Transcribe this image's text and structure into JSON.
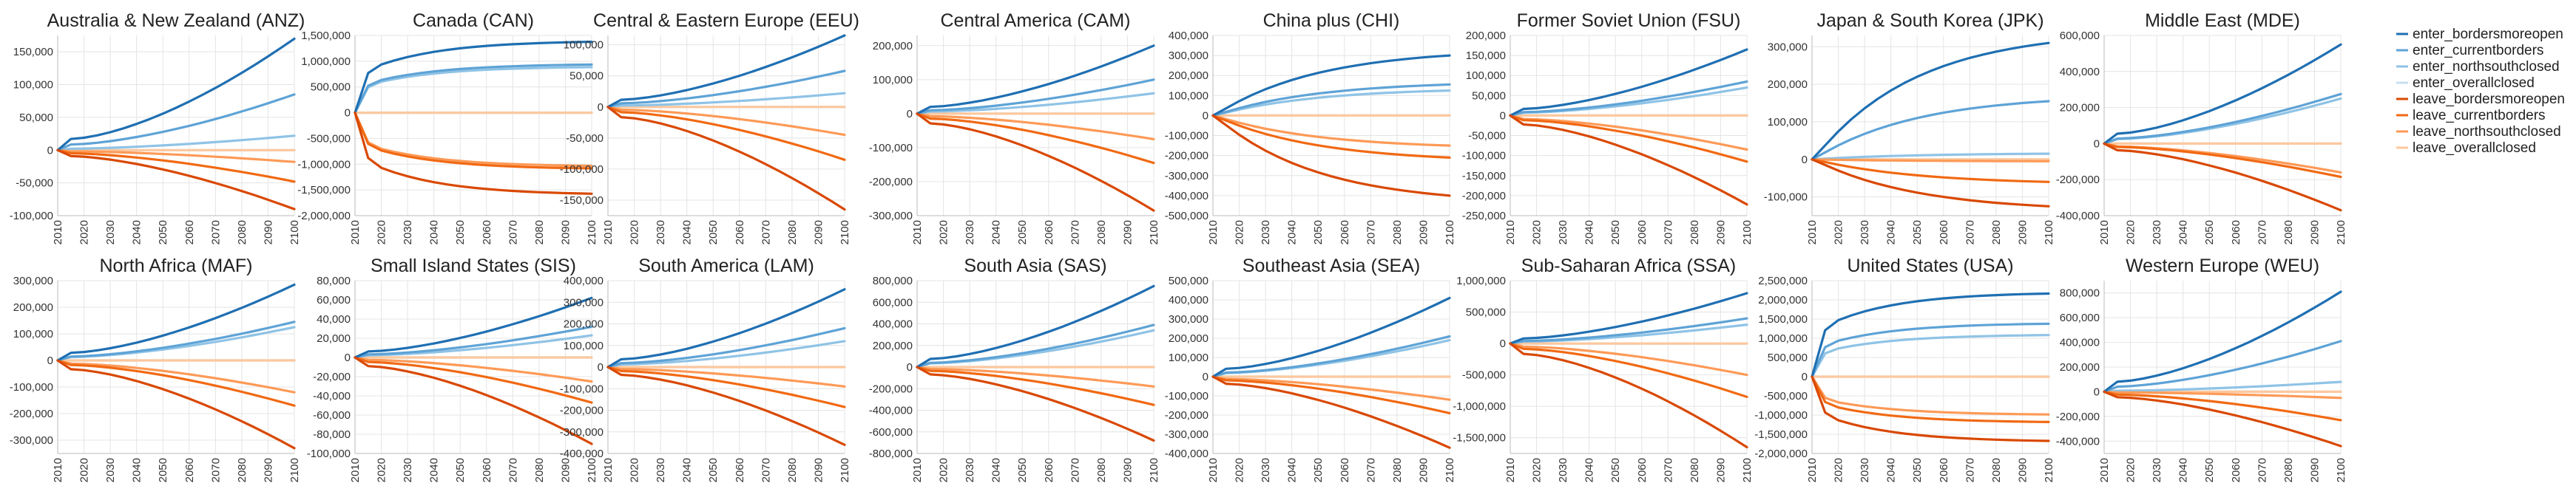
{
  "chart_data": {
    "type": "line",
    "x": [
      2010,
      2020,
      2030,
      2040,
      2050,
      2060,
      2070,
      2080,
      2090,
      2100
    ],
    "xlim": [
      2010,
      2100
    ],
    "legend_position": "right",
    "legend": [
      {
        "key": "enter_bordersmoreopen",
        "label": "enter_bordersmoreopen",
        "color": "#1f6fb2"
      },
      {
        "key": "enter_currentborders",
        "label": "enter_currentborders",
        "color": "#5ea3d6"
      },
      {
        "key": "enter_northsouthclosed",
        "label": "enter_northsouthclosed",
        "color": "#8fc3e6"
      },
      {
        "key": "enter_overallclosed",
        "label": "enter_overallclosed",
        "color": "#c7dff0"
      },
      {
        "key": "leave_bordersmoreopen",
        "label": "leave_bordersmoreopen",
        "color": "#d94801"
      },
      {
        "key": "leave_currentborders",
        "label": "leave_currentborders",
        "color": "#f16913"
      },
      {
        "key": "leave_northsouthclosed",
        "label": "leave_northsouthclosed",
        "color": "#fd9a57"
      },
      {
        "key": "leave_overallclosed",
        "label": "leave_overallclosed",
        "color": "#fdc89e"
      }
    ],
    "panels": [
      {
        "title": "Australia & New Zealand (ANZ)",
        "ylim": [
          -100000,
          175000
        ],
        "yticks": [
          -100000,
          -50000,
          0,
          50000,
          100000,
          150000
        ],
        "ytick_labels": [
          "-100,000",
          "-50,000",
          "0",
          "50,000",
          "100,000",
          "150,000"
        ],
        "series": {
          "enter_bordersmoreopen": 170000,
          "enter_currentborders": 85000,
          "enter_northsouthclosed": 22000,
          "enter_overallclosed": 0,
          "leave_bordersmoreopen": -90000,
          "leave_currentborders": -48000,
          "leave_northsouthclosed": -18000,
          "leave_overallclosed": 0
        }
      },
      {
        "title": "Canada (CAN)",
        "ylim": [
          -2000000,
          1500000
        ],
        "yticks": [
          -2000000,
          -1500000,
          -1000000,
          -500000,
          0,
          500000,
          1000000,
          1500000
        ],
        "ytick_labels": [
          "-2,000,000",
          "-1,500,000",
          "-1,000,000",
          "-500,000",
          "0",
          "500,000",
          "1,000,000",
          "1,500,000"
        ],
        "series": {
          "enter_bordersmoreopen": 1400000,
          "enter_currentborders": 950000,
          "enter_northsouthclosed": 900000,
          "enter_overallclosed": 0,
          "leave_bordersmoreopen": -1600000,
          "leave_currentborders": -1100000,
          "leave_northsouthclosed": -1050000,
          "leave_overallclosed": 0
        }
      },
      {
        "title": "Central & Eastern Europe (EEU)",
        "ylim": [
          -175000,
          115000
        ],
        "yticks": [
          -150000,
          -100000,
          -50000,
          0,
          50000,
          100000
        ],
        "ytick_labels": [
          "-150,000",
          "-100,000",
          "-50,000",
          "0",
          "50,000",
          "100,000"
        ],
        "series": {
          "enter_bordersmoreopen": 115000,
          "enter_currentborders": 58000,
          "enter_northsouthclosed": 22000,
          "enter_overallclosed": 0,
          "leave_bordersmoreopen": -165000,
          "leave_currentborders": -85000,
          "leave_northsouthclosed": -45000,
          "leave_overallclosed": 0
        }
      },
      {
        "title": "Central America (CAM)",
        "ylim": [
          -300000,
          230000
        ],
        "yticks": [
          -300000,
          -200000,
          -100000,
          0,
          100000,
          200000
        ],
        "ytick_labels": [
          "-300,000",
          "-200,000",
          "-100,000",
          "0",
          "100,000",
          "200,000"
        ],
        "series": {
          "enter_bordersmoreopen": 200000,
          "enter_currentborders": 100000,
          "enter_northsouthclosed": 60000,
          "enter_overallclosed": 0,
          "leave_bordersmoreopen": -285000,
          "leave_currentborders": -145000,
          "leave_northsouthclosed": -75000,
          "leave_overallclosed": 0
        }
      },
      {
        "title": "China plus (CHI)",
        "ylim": [
          -500000,
          400000
        ],
        "yticks": [
          -500000,
          -400000,
          -300000,
          -200000,
          -100000,
          0,
          100000,
          200000,
          300000,
          400000
        ],
        "ytick_labels": [
          "-500,000",
          "-400,000",
          "-300,000",
          "-200,000",
          "-100,000",
          "0",
          "100,000",
          "200,000",
          "300,000",
          "400,000"
        ],
        "series": {
          "enter_bordersmoreopen": 300000,
          "enter_currentborders": 155000,
          "enter_northsouthclosed": 125000,
          "enter_overallclosed": 0,
          "leave_bordersmoreopen": -400000,
          "leave_currentborders": -210000,
          "leave_northsouthclosed": -150000,
          "leave_overallclosed": 0
        }
      },
      {
        "title": "Former Soviet Union (FSU)",
        "ylim": [
          -250000,
          200000
        ],
        "yticks": [
          -250000,
          -200000,
          -150000,
          -100000,
          -50000,
          0,
          50000,
          100000,
          150000,
          200000
        ],
        "ytick_labels": [
          "-250,000",
          "-200,000",
          "-150,000",
          "-100,000",
          "-50,000",
          "0",
          "50,000",
          "100,000",
          "150,000",
          "200,000"
        ],
        "series": {
          "enter_bordersmoreopen": 165000,
          "enter_currentborders": 85000,
          "enter_northsouthclosed": 70000,
          "enter_overallclosed": 0,
          "leave_bordersmoreopen": -222000,
          "leave_currentborders": -115000,
          "leave_northsouthclosed": -85000,
          "leave_overallclosed": 0
        }
      },
      {
        "title": "Japan & South Korea (JPK)",
        "ylim": [
          -150000,
          330000
        ],
        "yticks": [
          -100000,
          0,
          100000,
          200000,
          300000
        ],
        "ytick_labels": [
          "-100,000",
          "0",
          "100,000",
          "200,000",
          "300,000"
        ],
        "series": {
          "enter_bordersmoreopen": 310000,
          "enter_currentborders": 155000,
          "enter_northsouthclosed": 15000,
          "enter_overallclosed": 0,
          "leave_bordersmoreopen": -125000,
          "leave_currentborders": -60000,
          "leave_northsouthclosed": -5000,
          "leave_overallclosed": 0
        }
      },
      {
        "title": "Middle East (MDE)",
        "ylim": [
          -400000,
          600000
        ],
        "yticks": [
          -400000,
          -200000,
          0,
          200000,
          400000,
          600000
        ],
        "ytick_labels": [
          "-400,000",
          "-200,000",
          "0",
          "200,000",
          "400,000",
          "600,000"
        ],
        "series": {
          "enter_bordersmoreopen": 550000,
          "enter_currentborders": 275000,
          "enter_northsouthclosed": 250000,
          "enter_overallclosed": 0,
          "leave_bordersmoreopen": -370000,
          "leave_currentborders": -185000,
          "leave_northsouthclosed": -160000,
          "leave_overallclosed": 0
        }
      },
      {
        "title": "North Africa (MAF)",
        "ylim": [
          -350000,
          300000
        ],
        "yticks": [
          -300000,
          -200000,
          -100000,
          0,
          100000,
          200000,
          300000
        ],
        "ytick_labels": [
          "-300,000",
          "-200,000",
          "-100,000",
          "0",
          "100,000",
          "200,000",
          "300,000"
        ],
        "series": {
          "enter_bordersmoreopen": 285000,
          "enter_currentborders": 145000,
          "enter_northsouthclosed": 125000,
          "enter_overallclosed": 0,
          "leave_bordersmoreopen": -330000,
          "leave_currentborders": -170000,
          "leave_northsouthclosed": -120000,
          "leave_overallclosed": 0
        }
      },
      {
        "title": "Small Island States (SIS)",
        "ylim": [
          -100000,
          80000
        ],
        "yticks": [
          -100000,
          -80000,
          -60000,
          -40000,
          -20000,
          0,
          20000,
          40000,
          60000,
          80000
        ],
        "ytick_labels": [
          "-100,000",
          "-80,000",
          "-60,000",
          "-40,000",
          "-20,000",
          "0",
          "20,000",
          "40,000",
          "60,000",
          "80,000"
        ],
        "series": {
          "enter_bordersmoreopen": 62000,
          "enter_currentborders": 32000,
          "enter_northsouthclosed": 23000,
          "enter_overallclosed": 0,
          "leave_bordersmoreopen": -90000,
          "leave_currentborders": -47000,
          "leave_northsouthclosed": -25000,
          "leave_overallclosed": 0
        }
      },
      {
        "title": "South America (LAM)",
        "ylim": [
          -400000,
          400000
        ],
        "yticks": [
          -400000,
          -300000,
          -200000,
          -100000,
          0,
          100000,
          200000,
          300000,
          400000
        ],
        "ytick_labels": [
          "-400,000",
          "-300,000",
          "-200,000",
          "-100,000",
          "0",
          "100,000",
          "200,000",
          "300,000",
          "400,000"
        ],
        "series": {
          "enter_bordersmoreopen": 360000,
          "enter_currentborders": 180000,
          "enter_northsouthclosed": 120000,
          "enter_overallclosed": 0,
          "leave_bordersmoreopen": -360000,
          "leave_currentborders": -185000,
          "leave_northsouthclosed": -90000,
          "leave_overallclosed": 0
        }
      },
      {
        "title": "South Asia (SAS)",
        "ylim": [
          -800000,
          800000
        ],
        "yticks": [
          -800000,
          -600000,
          -400000,
          -200000,
          0,
          200000,
          400000,
          600000,
          800000
        ],
        "ytick_labels": [
          "-800,000",
          "-600,000",
          "-400,000",
          "-200,000",
          "0",
          "200,000",
          "400,000",
          "600,000",
          "800,000"
        ],
        "series": {
          "enter_bordersmoreopen": 750000,
          "enter_currentborders": 390000,
          "enter_northsouthclosed": 340000,
          "enter_overallclosed": 0,
          "leave_bordersmoreopen": -680000,
          "leave_currentborders": -350000,
          "leave_northsouthclosed": -180000,
          "leave_overallclosed": 0
        }
      },
      {
        "title": "Southeast Asia (SEA)",
        "ylim": [
          -400000,
          500000
        ],
        "yticks": [
          -400000,
          -300000,
          -200000,
          -100000,
          0,
          100000,
          200000,
          300000,
          400000,
          500000
        ],
        "ytick_labels": [
          "-400,000",
          "-300,000",
          "-200,000",
          "-100,000",
          "0",
          "100,000",
          "200,000",
          "300,000",
          "400,000",
          "500,000"
        ],
        "series": {
          "enter_bordersmoreopen": 410000,
          "enter_currentborders": 210000,
          "enter_northsouthclosed": 190000,
          "enter_overallclosed": 0,
          "leave_bordersmoreopen": -370000,
          "leave_currentborders": -190000,
          "leave_northsouthclosed": -120000,
          "leave_overallclosed": 0
        }
      },
      {
        "title": "Sub-Saharan Africa (SSA)",
        "ylim": [
          -1750000,
          1000000
        ],
        "yticks": [
          -1500000,
          -1000000,
          -500000,
          0,
          500000,
          1000000
        ],
        "ytick_labels": [
          "-1,500,000",
          "-1,000,000",
          "-500,000",
          "0",
          "500,000",
          "1,000,000"
        ],
        "series": {
          "enter_bordersmoreopen": 800000,
          "enter_currentborders": 400000,
          "enter_northsouthclosed": 300000,
          "enter_overallclosed": 0,
          "leave_bordersmoreopen": -1650000,
          "leave_currentborders": -850000,
          "leave_northsouthclosed": -500000,
          "leave_overallclosed": 0
        }
      },
      {
        "title": "United States (USA)",
        "ylim": [
          -2000000,
          2500000
        ],
        "yticks": [
          -2000000,
          -1500000,
          -1000000,
          -500000,
          0,
          500000,
          1000000,
          1500000,
          2000000,
          2500000
        ],
        "ytick_labels": [
          "-2,000,000",
          "-1,500,000",
          "-1,000,000",
          "-500,000",
          "0",
          "500,000",
          "1,000,000",
          "1,500,000",
          "2,000,000",
          "2,500,000"
        ],
        "series": {
          "enter_bordersmoreopen": 2200000,
          "enter_currentborders": 1400000,
          "enter_northsouthclosed": 1100000,
          "enter_overallclosed": 0,
          "leave_bordersmoreopen": -1700000,
          "leave_currentborders": -1200000,
          "leave_northsouthclosed": -1000000,
          "leave_overallclosed": 0
        }
      },
      {
        "title": "Western Europe (WEU)",
        "ylim": [
          -500000,
          900000
        ],
        "yticks": [
          -400000,
          -200000,
          0,
          200000,
          400000,
          600000,
          800000
        ],
        "ytick_labels": [
          "-400,000",
          "-200,000",
          "0",
          "200,000",
          "400,000",
          "600,000",
          "800,000"
        ],
        "series": {
          "enter_bordersmoreopen": 810000,
          "enter_currentborders": 410000,
          "enter_northsouthclosed": 80000,
          "enter_overallclosed": 0,
          "leave_bordersmoreopen": -440000,
          "leave_currentborders": -230000,
          "leave_northsouthclosed": -50000,
          "leave_overallclosed": 0
        }
      }
    ]
  }
}
